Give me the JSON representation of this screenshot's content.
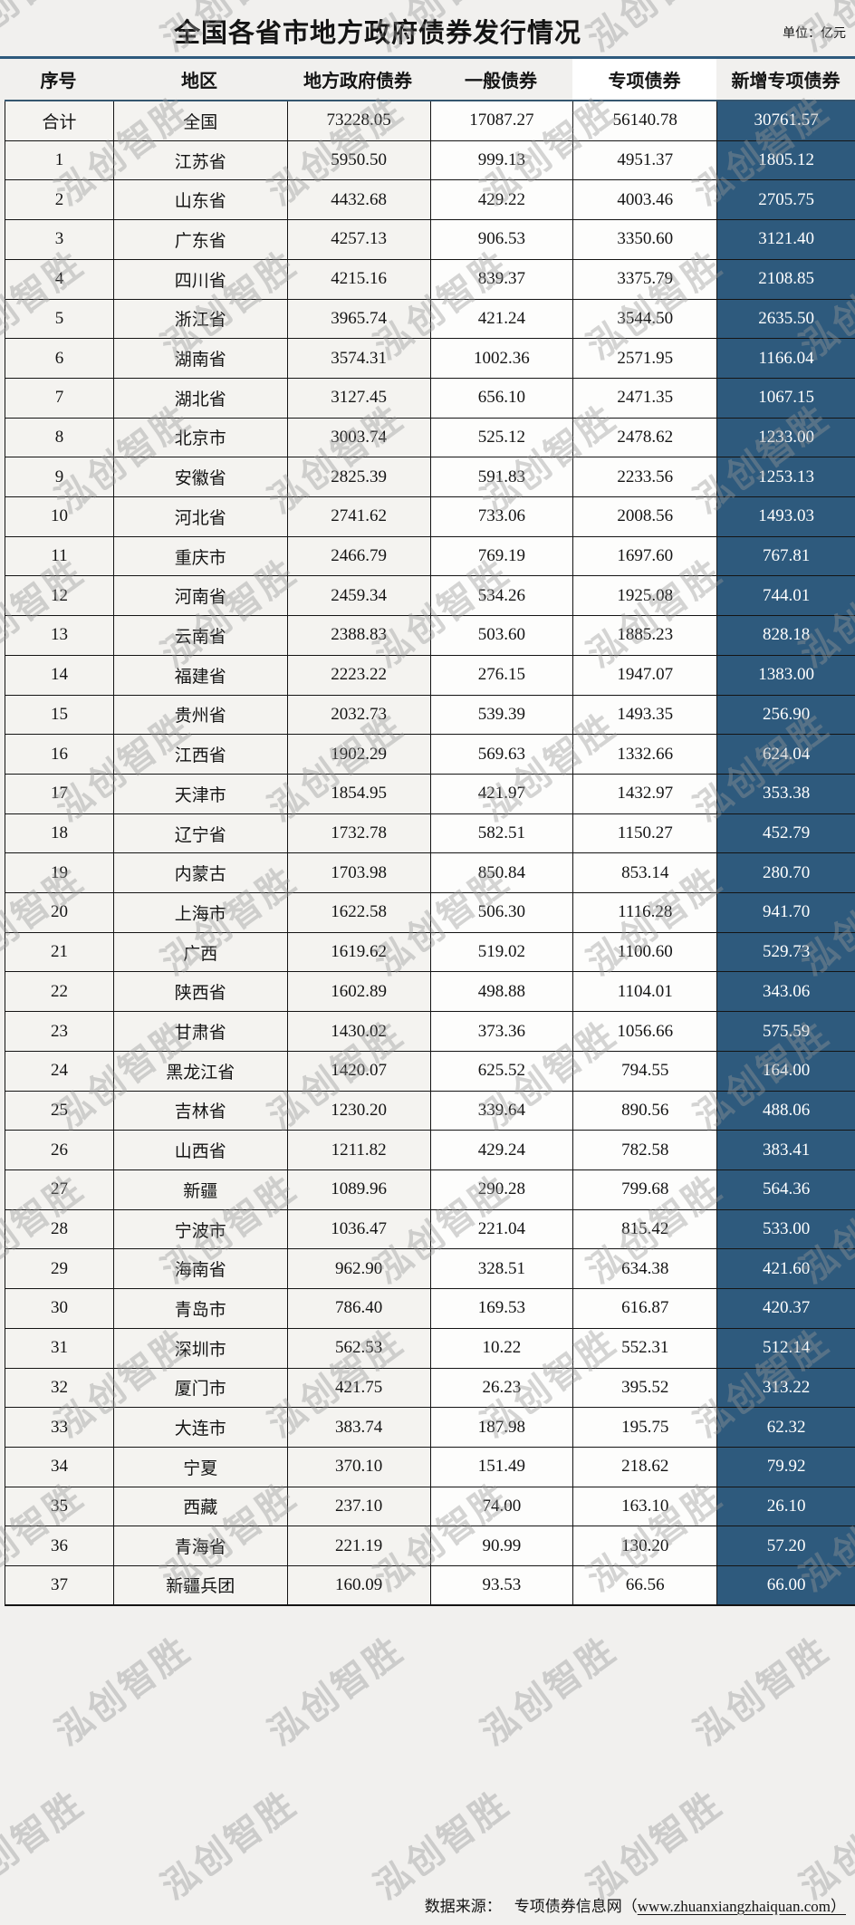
{
  "page": {
    "title": "全国各省市地方政府债券发行情况",
    "unit_label": "单位：亿元",
    "watermark_text": "泓创智胜",
    "colors": {
      "accent_blue": "#2E5A7D",
      "border_dark": "#141414",
      "highlight_column_bg": "#2E5A7D",
      "highlight_column_text": "#FFFFFF"
    }
  },
  "footer": {
    "prefix": "数据来源：",
    "site_name": "专项债券信息网",
    "paren_open": "（",
    "url": "www.zhuanxiangzhaiquan.com",
    "paren_close": "）"
  },
  "table": {
    "columns": [
      "序号",
      "地区",
      "地方政府债券",
      "一般债券",
      "专项债券",
      "新增专项债券"
    ],
    "rows": [
      [
        "合计",
        "全国",
        "73228.05",
        "17087.27",
        "56140.78",
        "30761.57"
      ],
      [
        "1",
        "江苏省",
        "5950.50",
        "999.13",
        "4951.37",
        "1805.12"
      ],
      [
        "2",
        "山东省",
        "4432.68",
        "429.22",
        "4003.46",
        "2705.75"
      ],
      [
        "3",
        "广东省",
        "4257.13",
        "906.53",
        "3350.60",
        "3121.40"
      ],
      [
        "4",
        "四川省",
        "4215.16",
        "839.37",
        "3375.79",
        "2108.85"
      ],
      [
        "5",
        "浙江省",
        "3965.74",
        "421.24",
        "3544.50",
        "2635.50"
      ],
      [
        "6",
        "湖南省",
        "3574.31",
        "1002.36",
        "2571.95",
        "1166.04"
      ],
      [
        "7",
        "湖北省",
        "3127.45",
        "656.10",
        "2471.35",
        "1067.15"
      ],
      [
        "8",
        "北京市",
        "3003.74",
        "525.12",
        "2478.62",
        "1233.00"
      ],
      [
        "9",
        "安徽省",
        "2825.39",
        "591.83",
        "2233.56",
        "1253.13"
      ],
      [
        "10",
        "河北省",
        "2741.62",
        "733.06",
        "2008.56",
        "1493.03"
      ],
      [
        "11",
        "重庆市",
        "2466.79",
        "769.19",
        "1697.60",
        "767.81"
      ],
      [
        "12",
        "河南省",
        "2459.34",
        "534.26",
        "1925.08",
        "744.01"
      ],
      [
        "13",
        "云南省",
        "2388.83",
        "503.60",
        "1885.23",
        "828.18"
      ],
      [
        "14",
        "福建省",
        "2223.22",
        "276.15",
        "1947.07",
        "1383.00"
      ],
      [
        "15",
        "贵州省",
        "2032.73",
        "539.39",
        "1493.35",
        "256.90"
      ],
      [
        "16",
        "江西省",
        "1902.29",
        "569.63",
        "1332.66",
        "624.04"
      ],
      [
        "17",
        "天津市",
        "1854.95",
        "421.97",
        "1432.97",
        "353.38"
      ],
      [
        "18",
        "辽宁省",
        "1732.78",
        "582.51",
        "1150.27",
        "452.79"
      ],
      [
        "19",
        "内蒙古",
        "1703.98",
        "850.84",
        "853.14",
        "280.70"
      ],
      [
        "20",
        "上海市",
        "1622.58",
        "506.30",
        "1116.28",
        "941.70"
      ],
      [
        "21",
        "广西",
        "1619.62",
        "519.02",
        "1100.60",
        "529.73"
      ],
      [
        "22",
        "陕西省",
        "1602.89",
        "498.88",
        "1104.01",
        "343.06"
      ],
      [
        "23",
        "甘肃省",
        "1430.02",
        "373.36",
        "1056.66",
        "575.59"
      ],
      [
        "24",
        "黑龙江省",
        "1420.07",
        "625.52",
        "794.55",
        "164.00"
      ],
      [
        "25",
        "吉林省",
        "1230.20",
        "339.64",
        "890.56",
        "488.06"
      ],
      [
        "26",
        "山西省",
        "1211.82",
        "429.24",
        "782.58",
        "383.41"
      ],
      [
        "27",
        "新疆",
        "1089.96",
        "290.28",
        "799.68",
        "564.36"
      ],
      [
        "28",
        "宁波市",
        "1036.47",
        "221.04",
        "815.42",
        "533.00"
      ],
      [
        "29",
        "海南省",
        "962.90",
        "328.51",
        "634.38",
        "421.60"
      ],
      [
        "30",
        "青岛市",
        "786.40",
        "169.53",
        "616.87",
        "420.37"
      ],
      [
        "31",
        "深圳市",
        "562.53",
        "10.22",
        "552.31",
        "512.14"
      ],
      [
        "32",
        "厦门市",
        "421.75",
        "26.23",
        "395.52",
        "313.22"
      ],
      [
        "33",
        "大连市",
        "383.74",
        "187.98",
        "195.75",
        "62.32"
      ],
      [
        "34",
        "宁夏",
        "370.10",
        "151.49",
        "218.62",
        "79.92"
      ],
      [
        "35",
        "西藏",
        "237.10",
        "74.00",
        "163.10",
        "26.10"
      ],
      [
        "36",
        "青海省",
        "221.19",
        "90.99",
        "130.20",
        "57.20"
      ],
      [
        "37",
        "新疆兵团",
        "160.09",
        "93.53",
        "66.56",
        "66.00"
      ]
    ]
  }
}
